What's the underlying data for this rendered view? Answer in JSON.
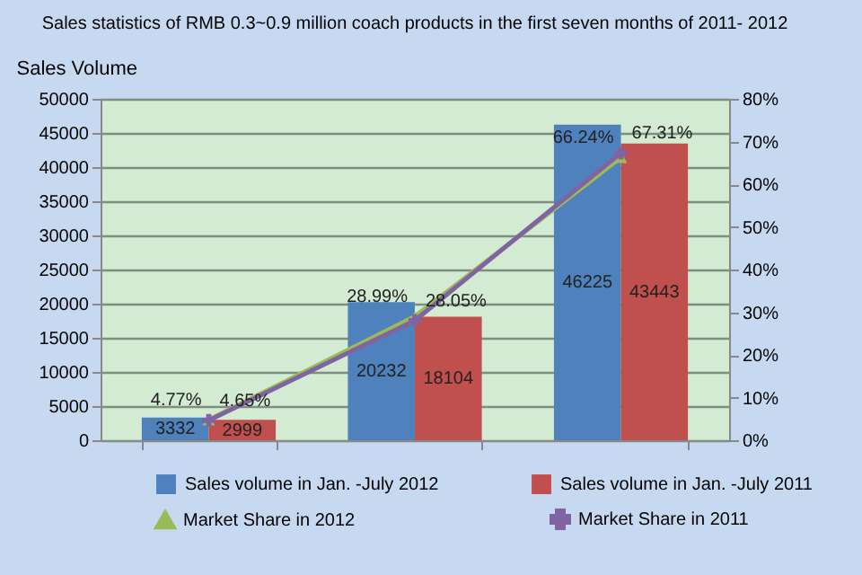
{
  "chart_data": {
    "type": "bar",
    "title": "Sales statistics of RMB 0.3~0.9 million coach products in the first seven months of 2011- 2012",
    "ylabel": "Sales Volume",
    "categories": [
      null,
      null,
      null
    ],
    "series": [
      {
        "name": "Sales volume in Jan. -July 2012",
        "color": "#4f81bd",
        "values": [
          3332,
          20232,
          46225
        ]
      },
      {
        "name": "Sales volume in Jan. -July 2011",
        "color": "#c0504d",
        "values": [
          2999,
          18104,
          43443
        ]
      },
      {
        "name": "Market Share in 2012",
        "type": "line",
        "axis": "y2",
        "marker": "triangle",
        "color": "#9bbb59",
        "values": [
          4.77,
          28.99,
          66.24
        ],
        "value_labels": [
          "4.77%",
          "28.99%",
          "66.24%"
        ]
      },
      {
        "name": "Market Share in 2011",
        "type": "line",
        "axis": "y2",
        "marker": "cross",
        "color": "#8064a2",
        "values": [
          4.65,
          28.05,
          67.31
        ],
        "value_labels": [
          "4.65%",
          "28.05%",
          "67.31%"
        ]
      }
    ],
    "ylim": [
      0,
      50000
    ],
    "yticks": [
      0,
      5000,
      10000,
      15000,
      20000,
      25000,
      30000,
      35000,
      40000,
      45000,
      50000
    ],
    "y2lim": [
      0,
      80
    ],
    "y2ticks": [
      {
        "value": 0,
        "label": "0%"
      },
      {
        "value": 10,
        "label": "10%"
      },
      {
        "value": 20,
        "label": "20%"
      },
      {
        "value": 30,
        "label": "30%"
      },
      {
        "value": 40,
        "label": "40%"
      },
      {
        "value": 50,
        "label": "50%"
      },
      {
        "value": 60,
        "label": "60%"
      },
      {
        "value": 70,
        "label": "70%"
      },
      {
        "value": 80,
        "label": "80%"
      }
    ],
    "data_labels": true,
    "grid": "y",
    "legend": "bottom"
  }
}
